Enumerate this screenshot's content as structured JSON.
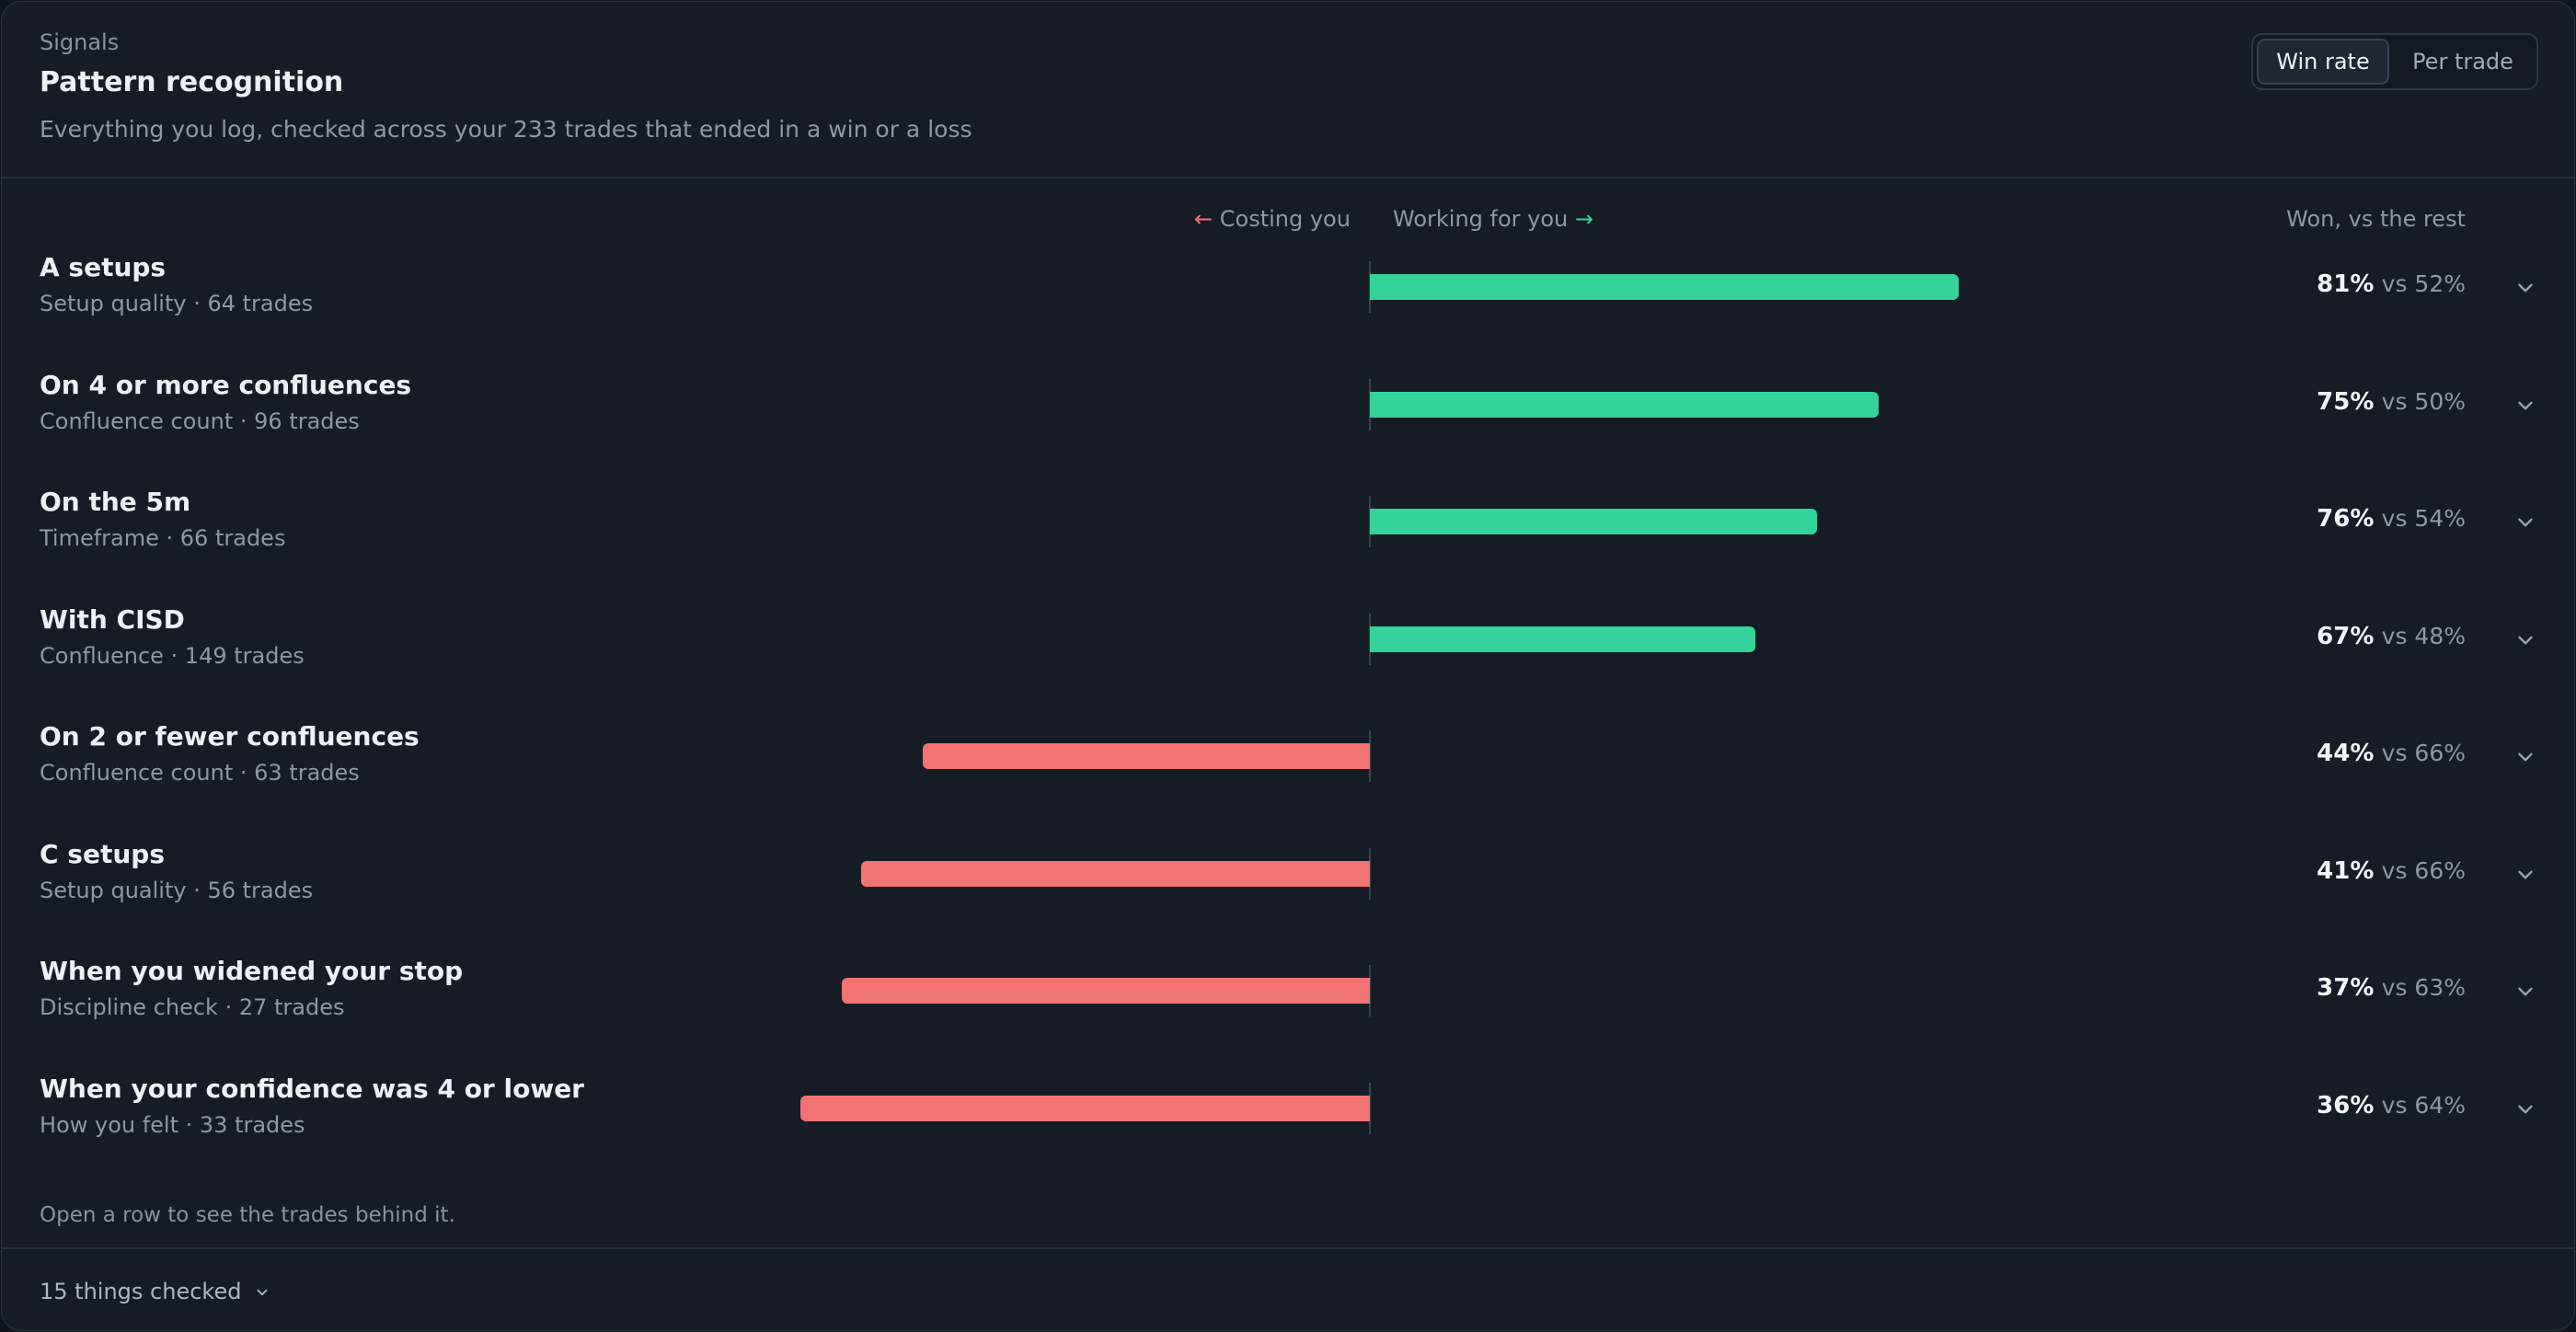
{
  "header": {
    "eyebrow": "Signals",
    "title": "Pattern recognition",
    "subtitle": "Everything you log, checked across your 233 trades that ended in a win or a loss"
  },
  "toggle": {
    "options": [
      {
        "label": "Win rate",
        "active": true
      },
      {
        "label": "Per trade",
        "active": false
      }
    ]
  },
  "axis": {
    "left_arrow": "←",
    "left_label": "Costing you",
    "right_label": "Working for you",
    "right_arrow": "→",
    "column_header": "Won, vs the rest"
  },
  "colors": {
    "positive": "#34d399",
    "negative": "#f27373"
  },
  "rows": [
    {
      "label": "A setups",
      "meta": "Setup quality · 64 trades",
      "win": "81%",
      "rest": "vs 52%",
      "effect": 0.81,
      "direction": "positive"
    },
    {
      "label": "On 4 or more confluences",
      "meta": "Confluence count · 96 trades",
      "win": "75%",
      "rest": "vs 50%",
      "effect": 0.7,
      "direction": "positive"
    },
    {
      "label": "On the 5m",
      "meta": "Timeframe · 66 trades",
      "win": "76%",
      "rest": "vs 54%",
      "effect": 0.615,
      "direction": "positive"
    },
    {
      "label": "With CISD",
      "meta": "Confluence · 149 trades",
      "win": "67%",
      "rest": "vs 48%",
      "effect": 0.53,
      "direction": "positive"
    },
    {
      "label": "On 2 or fewer confluences",
      "meta": "Confluence count · 63 trades",
      "win": "44%",
      "rest": "vs 66%",
      "effect": 0.615,
      "direction": "negative"
    },
    {
      "label": "C setups",
      "meta": "Setup quality · 56 trades",
      "win": "41%",
      "rest": "vs 66%",
      "effect": 0.7,
      "direction": "negative"
    },
    {
      "label": "When you widened your stop",
      "meta": "Discipline check · 27 trades",
      "win": "37%",
      "rest": "vs 63%",
      "effect": 0.727,
      "direction": "negative"
    },
    {
      "label": "When your confidence was 4 or lower",
      "meta": "How you felt · 33 trades",
      "win": "36%",
      "rest": "vs 64%",
      "effect": 0.784,
      "direction": "negative"
    }
  ],
  "hint": "Open a row to see the trades behind it.",
  "footer": {
    "label": "15 things checked"
  }
}
